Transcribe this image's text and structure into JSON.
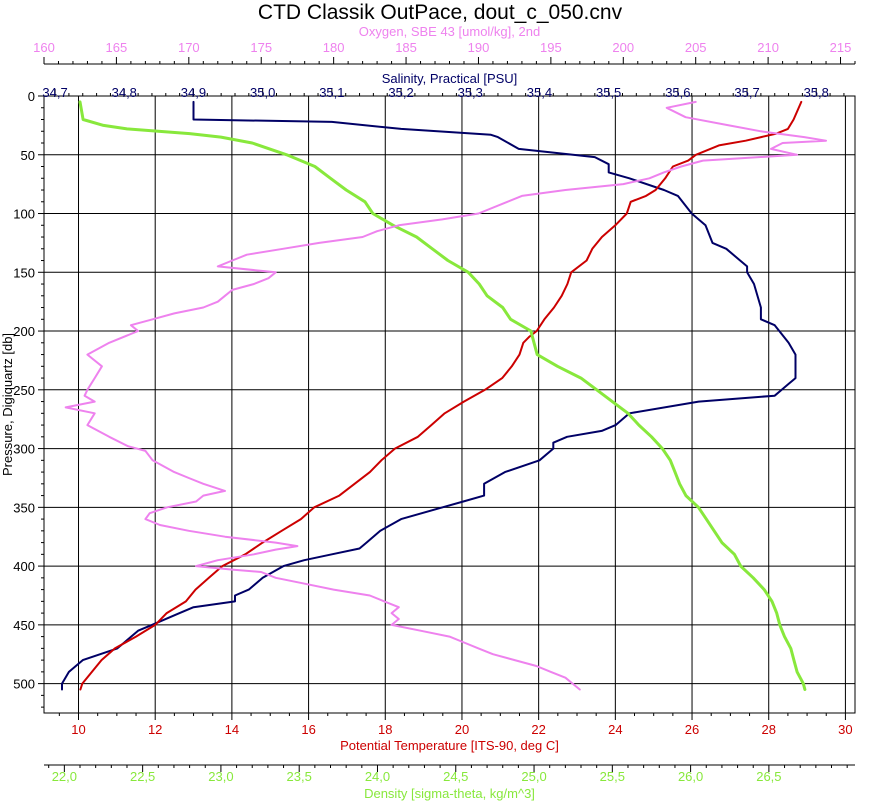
{
  "chart_data": {
    "type": "line",
    "title": "CTD Classik OutPace, dout_c_050.cnv",
    "y_axis": {
      "label": "Pressure, Digiquartz [db]",
      "range": [
        0,
        525
      ],
      "inverted": true,
      "ticks": [
        0,
        50,
        100,
        150,
        200,
        250,
        300,
        350,
        400,
        450,
        500
      ],
      "tick_labels": [
        "0",
        "50",
        "100",
        "150",
        "200",
        "250",
        "300",
        "350",
        "400",
        "450",
        "500"
      ]
    },
    "x_axes": [
      {
        "id": "oxygen",
        "label": "Oxygen, SBE 43 [umol/kg], 2nd",
        "position": "top-outer",
        "color": "#ee82ee",
        "range": [
          160,
          216
        ],
        "ticks": [
          160,
          165,
          170,
          175,
          180,
          185,
          190,
          195,
          200,
          205,
          210,
          215
        ],
        "tick_labels": [
          "160",
          "165",
          "170",
          "175",
          "180",
          "185",
          "190",
          "195",
          "200",
          "205",
          "210",
          "215"
        ]
      },
      {
        "id": "salinity",
        "label": "Salinity, Practical [PSU]",
        "position": "top-inner",
        "color": "#000066",
        "range": [
          34.684,
          35.856
        ],
        "ticks": [
          34.7,
          34.8,
          34.9,
          35.0,
          35.1,
          35.2,
          35.3,
          35.4,
          35.5,
          35.6,
          35.7,
          35.8
        ],
        "tick_labels": [
          "34,7",
          "34,8",
          "34,9",
          "35,0",
          "35,1",
          "35,2",
          "35,3",
          "35,4",
          "35,5",
          "35,6",
          "35,7",
          "35,8"
        ]
      },
      {
        "id": "temperature",
        "label": "Potential Temperature [ITS-90, deg C]",
        "position": "bottom-inner",
        "color": "#cc0000",
        "range": [
          9.1,
          30.25
        ],
        "ticks": [
          10,
          12,
          14,
          16,
          18,
          20,
          22,
          24,
          26,
          28,
          30
        ],
        "tick_labels": [
          "10",
          "12",
          "14",
          "16",
          "18",
          "20",
          "22",
          "24",
          "26",
          "28",
          "30"
        ]
      },
      {
        "id": "density",
        "label": "Density [sigma-theta, kg/m^3]",
        "position": "bottom-outer",
        "color": "#88e83c",
        "range": [
          21.87,
          27.05
        ],
        "ticks": [
          22.0,
          22.5,
          23.0,
          23.5,
          24.0,
          24.5,
          25.0,
          25.5,
          26.0,
          26.5
        ],
        "tick_labels": [
          "22,0",
          "22,5",
          "23,0",
          "23,5",
          "24,0",
          "24,5",
          "25,0",
          "25,5",
          "26,0",
          "26,5"
        ]
      }
    ],
    "grid": true,
    "series": [
      {
        "axis": "salinity",
        "color": "#000066",
        "points": [
          [
            5,
            34.9
          ],
          [
            20,
            34.9
          ],
          [
            22,
            35.1
          ],
          [
            28,
            35.2
          ],
          [
            33,
            35.33
          ],
          [
            35,
            35.34
          ],
          [
            45,
            35.37
          ],
          [
            52,
            35.48
          ],
          [
            58,
            35.5
          ],
          [
            65,
            35.5
          ],
          [
            70,
            35.53
          ],
          [
            80,
            35.58
          ],
          [
            85,
            35.6
          ],
          [
            100,
            35.62
          ],
          [
            110,
            35.64
          ],
          [
            125,
            35.65
          ],
          [
            130,
            35.67
          ],
          [
            140,
            35.69
          ],
          [
            145,
            35.7
          ],
          [
            150,
            35.7
          ],
          [
            160,
            35.71
          ],
          [
            180,
            35.72
          ],
          [
            190,
            35.72
          ],
          [
            195,
            35.74
          ],
          [
            210,
            35.76
          ],
          [
            220,
            35.77
          ],
          [
            230,
            35.77
          ],
          [
            240,
            35.77
          ],
          [
            245,
            35.76
          ],
          [
            250,
            35.75
          ],
          [
            255,
            35.74
          ],
          [
            260,
            35.63
          ],
          [
            270,
            35.53
          ],
          [
            280,
            35.51
          ],
          [
            285,
            35.49
          ],
          [
            290,
            35.44
          ],
          [
            295,
            35.42
          ],
          [
            300,
            35.42
          ],
          [
            310,
            35.4
          ],
          [
            320,
            35.35
          ],
          [
            330,
            35.32
          ],
          [
            340,
            35.32
          ],
          [
            345,
            35.29
          ],
          [
            350,
            35.26
          ],
          [
            360,
            35.2
          ],
          [
            370,
            35.17
          ],
          [
            380,
            35.15
          ],
          [
            385,
            35.14
          ],
          [
            390,
            35.1
          ],
          [
            395,
            35.06
          ],
          [
            400,
            35.03
          ],
          [
            410,
            35.0
          ],
          [
            420,
            34.98
          ],
          [
            425,
            34.96
          ],
          [
            430,
            34.96
          ],
          [
            435,
            34.9
          ],
          [
            440,
            34.88
          ],
          [
            450,
            34.84
          ],
          [
            455,
            34.82
          ],
          [
            465,
            34.8
          ],
          [
            470,
            34.79
          ],
          [
            480,
            34.74
          ],
          [
            490,
            34.72
          ],
          [
            500,
            34.71
          ],
          [
            505,
            34.71
          ]
        ]
      },
      {
        "axis": "temperature",
        "color": "#cc0000",
        "points": [
          [
            5,
            28.85
          ],
          [
            20,
            28.65
          ],
          [
            28,
            28.5
          ],
          [
            32,
            28.2
          ],
          [
            35,
            27.8
          ],
          [
            38,
            27.4
          ],
          [
            42,
            26.7
          ],
          [
            50,
            26.1
          ],
          [
            55,
            25.9
          ],
          [
            60,
            25.5
          ],
          [
            70,
            25.3
          ],
          [
            80,
            25.05
          ],
          [
            85,
            24.8
          ],
          [
            90,
            24.4
          ],
          [
            100,
            24.3
          ],
          [
            110,
            24.0
          ],
          [
            120,
            23.65
          ],
          [
            130,
            23.4
          ],
          [
            140,
            23.25
          ],
          [
            150,
            22.85
          ],
          [
            160,
            22.75
          ],
          [
            170,
            22.6
          ],
          [
            180,
            22.4
          ],
          [
            190,
            22.15
          ],
          [
            200,
            21.95
          ],
          [
            205,
            21.75
          ],
          [
            210,
            21.6
          ],
          [
            220,
            21.5
          ],
          [
            230,
            21.3
          ],
          [
            240,
            21.05
          ],
          [
            250,
            20.6
          ],
          [
            260,
            20.05
          ],
          [
            270,
            19.55
          ],
          [
            280,
            19.2
          ],
          [
            290,
            18.85
          ],
          [
            300,
            18.25
          ],
          [
            310,
            17.9
          ],
          [
            320,
            17.6
          ],
          [
            330,
            17.2
          ],
          [
            340,
            16.8
          ],
          [
            350,
            16.15
          ],
          [
            360,
            15.8
          ],
          [
            370,
            15.3
          ],
          [
            380,
            14.8
          ],
          [
            390,
            14.35
          ],
          [
            400,
            13.75
          ],
          [
            410,
            13.4
          ],
          [
            420,
            13.05
          ],
          [
            430,
            12.8
          ],
          [
            440,
            12.3
          ],
          [
            450,
            12.0
          ],
          [
            460,
            11.5
          ],
          [
            470,
            10.95
          ],
          [
            480,
            10.6
          ],
          [
            490,
            10.35
          ],
          [
            500,
            10.1
          ],
          [
            505,
            10.05
          ]
        ]
      },
      {
        "axis": "density",
        "color": "#88e83c",
        "points": [
          [
            5,
            22.1
          ],
          [
            20,
            22.12
          ],
          [
            25,
            22.25
          ],
          [
            28,
            22.4
          ],
          [
            30,
            22.6
          ],
          [
            32,
            22.8
          ],
          [
            35,
            23.0
          ],
          [
            40,
            23.2
          ],
          [
            50,
            23.42
          ],
          [
            60,
            23.6
          ],
          [
            70,
            23.7
          ],
          [
            80,
            23.8
          ],
          [
            90,
            23.92
          ],
          [
            100,
            23.97
          ],
          [
            110,
            24.1
          ],
          [
            120,
            24.25
          ],
          [
            130,
            24.35
          ],
          [
            140,
            24.45
          ],
          [
            150,
            24.58
          ],
          [
            160,
            24.65
          ],
          [
            170,
            24.7
          ],
          [
            180,
            24.8
          ],
          [
            190,
            24.85
          ],
          [
            200,
            24.98
          ],
          [
            210,
            25.0
          ],
          [
            220,
            25.02
          ],
          [
            230,
            25.15
          ],
          [
            240,
            25.3
          ],
          [
            250,
            25.4
          ],
          [
            260,
            25.5
          ],
          [
            270,
            25.6
          ],
          [
            280,
            25.67
          ],
          [
            290,
            25.75
          ],
          [
            300,
            25.82
          ],
          [
            310,
            25.87
          ],
          [
            320,
            25.9
          ],
          [
            330,
            25.93
          ],
          [
            340,
            25.97
          ],
          [
            350,
            26.05
          ],
          [
            360,
            26.1
          ],
          [
            370,
            26.15
          ],
          [
            380,
            26.2
          ],
          [
            390,
            26.28
          ],
          [
            400,
            26.32
          ],
          [
            410,
            26.4
          ],
          [
            420,
            26.47
          ],
          [
            430,
            26.52
          ],
          [
            440,
            26.55
          ],
          [
            450,
            26.57
          ],
          [
            460,
            26.6
          ],
          [
            470,
            26.64
          ],
          [
            480,
            26.66
          ],
          [
            490,
            26.68
          ],
          [
            500,
            26.72
          ],
          [
            505,
            26.73
          ]
        ]
      },
      {
        "axis": "oxygen",
        "color": "#ee82ee",
        "points": [
          [
            5,
            205.0
          ],
          [
            10,
            203.0
          ],
          [
            18,
            204.3
          ],
          [
            25,
            207.3
          ],
          [
            30,
            209.5
          ],
          [
            35,
            212.5
          ],
          [
            38,
            214.0
          ],
          [
            40,
            211.0
          ],
          [
            45,
            210.2
          ],
          [
            50,
            212.0
          ],
          [
            55,
            205.5
          ],
          [
            60,
            204.0
          ],
          [
            65,
            202.8
          ],
          [
            70,
            201.8
          ],
          [
            75,
            200.0
          ],
          [
            80,
            196.0
          ],
          [
            85,
            193.0
          ],
          [
            90,
            192.0
          ],
          [
            100,
            190.0
          ],
          [
            105,
            187.5
          ],
          [
            110,
            184.5
          ],
          [
            115,
            183.0
          ],
          [
            120,
            182.0
          ],
          [
            125,
            179.0
          ],
          [
            130,
            176.5
          ],
          [
            135,
            174.0
          ],
          [
            140,
            173.0
          ],
          [
            145,
            172.0
          ],
          [
            150,
            176.0
          ],
          [
            155,
            175.5
          ],
          [
            160,
            174.5
          ],
          [
            165,
            173.0
          ],
          [
            170,
            172.5
          ],
          [
            175,
            172.0
          ],
          [
            180,
            171.0
          ],
          [
            185,
            169.0
          ],
          [
            190,
            167.5
          ],
          [
            195,
            166.0
          ],
          [
            200,
            166.5
          ],
          [
            210,
            164.5
          ],
          [
            220,
            163.0
          ],
          [
            230,
            164.0
          ],
          [
            240,
            163.5
          ],
          [
            250,
            163.0
          ],
          [
            255,
            162.8
          ],
          [
            260,
            163.5
          ],
          [
            265,
            161.5
          ],
          [
            270,
            163.5
          ],
          [
            280,
            163.0
          ],
          [
            290,
            164.5
          ],
          [
            298,
            165.8
          ],
          [
            302,
            167.0
          ],
          [
            310,
            167.5
          ],
          [
            320,
            169.0
          ],
          [
            325,
            170.0
          ],
          [
            330,
            171.0
          ],
          [
            336,
            172.5
          ],
          [
            340,
            171.0
          ],
          [
            345,
            170.5
          ],
          [
            350,
            168.5
          ],
          [
            355,
            167.3
          ],
          [
            360,
            167.0
          ],
          [
            365,
            168.0
          ],
          [
            370,
            170.0
          ],
          [
            375,
            172.5
          ],
          [
            380,
            176.0
          ],
          [
            383,
            177.5
          ],
          [
            386,
            176.0
          ],
          [
            390,
            174.5
          ],
          [
            395,
            172.0
          ],
          [
            400,
            170.5
          ],
          [
            403,
            173.0
          ],
          [
            405,
            175.0
          ],
          [
            410,
            176.0
          ],
          [
            415,
            178.0
          ],
          [
            420,
            180.0
          ],
          [
            425,
            182.5
          ],
          [
            430,
            183.5
          ],
          [
            435,
            184.5
          ],
          [
            440,
            184.0
          ],
          [
            445,
            184.5
          ],
          [
            450,
            184.0
          ],
          [
            455,
            186.0
          ],
          [
            460,
            188.0
          ],
          [
            465,
            189.0
          ],
          [
            470,
            190.0
          ],
          [
            475,
            191.0
          ],
          [
            480,
            192.5
          ],
          [
            485,
            194.0
          ],
          [
            490,
            195.0
          ],
          [
            495,
            196.0
          ],
          [
            500,
            196.5
          ],
          [
            505,
            197.0
          ]
        ]
      }
    ]
  }
}
